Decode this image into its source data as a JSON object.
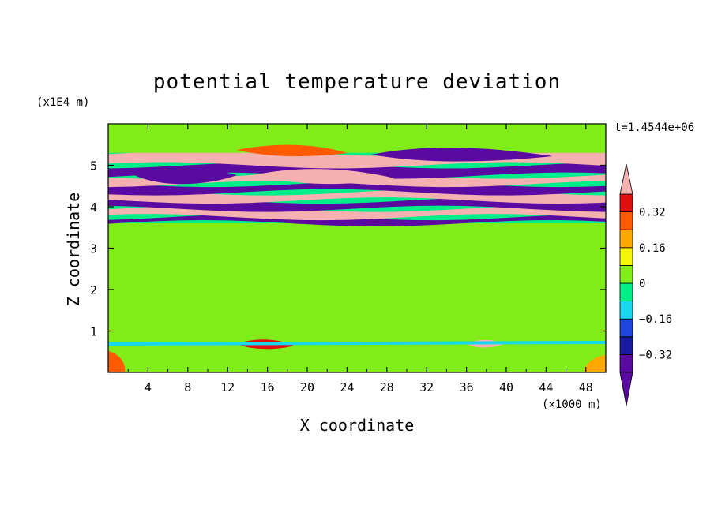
{
  "chart_data": {
    "type": "heatmap",
    "title": "potential temperature deviation",
    "time_label": "t=1.4544e+06",
    "xlabel": "X coordinate",
    "ylabel": "Z coordinate",
    "x_unit": "(×1000 m)",
    "y_unit": "(x1E4 m)",
    "xlim": [
      0,
      50
    ],
    "ylim": [
      0,
      6
    ],
    "x_ticks": [
      "4",
      "8",
      "12",
      "16",
      "20",
      "24",
      "28",
      "32",
      "36",
      "40",
      "44",
      "48"
    ],
    "x_tick_values": [
      4,
      8,
      12,
      16,
      20,
      24,
      28,
      32,
      36,
      40,
      44,
      48
    ],
    "y_ticks": [
      "1",
      "2",
      "3",
      "4",
      "5"
    ],
    "y_tick_values": [
      1,
      2,
      3,
      4,
      5
    ],
    "colorbar": {
      "levels": [
        -0.4,
        -0.32,
        -0.24,
        -0.16,
        -0.08,
        0,
        0.08,
        0.16,
        0.24,
        0.32,
        0.4
      ],
      "colors": [
        "#5a0aa0",
        "#1a1aa0",
        "#1e46dc",
        "#18d8f0",
        "#00ee88",
        "#80ec18",
        "#f5f508",
        "#ffa800",
        "#ff5a00",
        "#e01010",
        "#f5b0b0"
      ],
      "tick_labels": [
        "0.32",
        "0.16",
        "0",
        "−0.16",
        "−0.32"
      ],
      "tick_values": [
        0.32,
        0.16,
        0,
        -0.16,
        -0.32
      ]
    },
    "field_regions": [
      {
        "z": [
          0,
          0.7
        ],
        "value": 0.02
      },
      {
        "z": [
          0.7,
          3.6
        ],
        "value": 0.05
      },
      {
        "z": [
          3.6,
          3.75
        ],
        "value": -0.35
      },
      {
        "z": [
          3.75,
          3.95
        ],
        "value": 0.45
      },
      {
        "z": [
          3.95,
          4.15
        ],
        "value": -0.4
      },
      {
        "z": [
          4.15,
          4.35
        ],
        "value": 0.45
      },
      {
        "z": [
          4.35,
          4.55
        ],
        "value": -0.4
      },
      {
        "z": [
          4.55,
          4.75
        ],
        "value": 0.45
      },
      {
        "z": [
          4.75,
          5.0
        ],
        "value": -0.4
      },
      {
        "z": [
          5.0,
          5.3
        ],
        "value": 0.45
      },
      {
        "z": [
          5.3,
          6.0
        ],
        "value": 0.02
      }
    ]
  }
}
